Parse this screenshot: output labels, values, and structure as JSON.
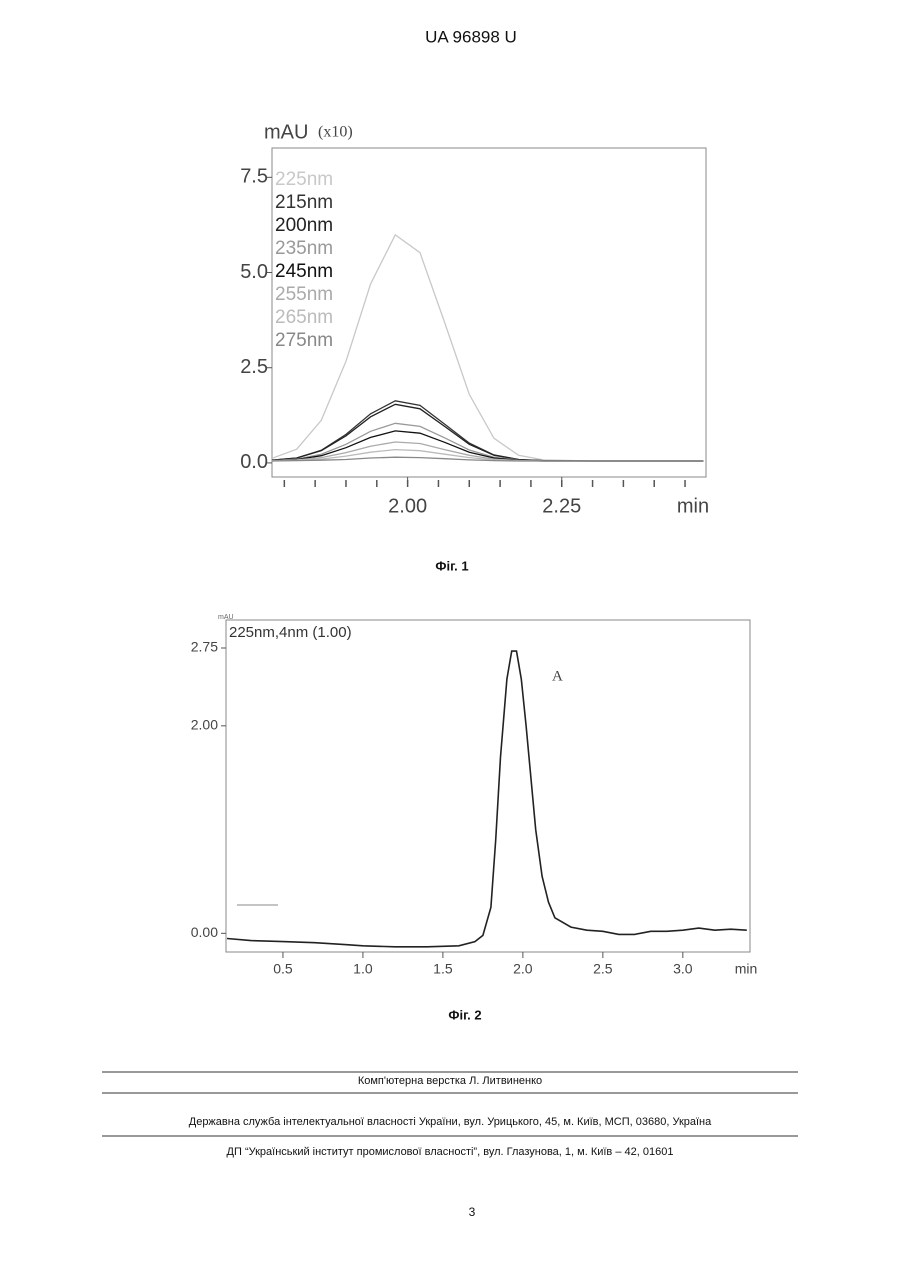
{
  "header": {
    "title": "UA   96898   U"
  },
  "chart_data": [
    {
      "type": "line",
      "ylabel": "mAU",
      "ylabel_scale": "(x10)",
      "xlabel": "min",
      "legend": "upper left",
      "x": [
        1.78,
        1.82,
        1.86,
        1.9,
        1.94,
        1.98,
        2.02,
        2.06,
        2.1,
        2.14,
        2.18,
        2.22,
        2.3,
        2.4,
        2.48
      ],
      "series": [
        {
          "name": "225nm",
          "color": "#c8c8c8",
          "values": [
            0.12,
            0.36,
            1.12,
            2.67,
            4.7,
            5.99,
            5.52,
            3.69,
            1.8,
            0.65,
            0.2,
            0.08,
            0.05,
            0.05,
            0.05
          ]
        },
        {
          "name": "215nm",
          "color": "#333333",
          "values": [
            0.07,
            0.13,
            0.33,
            0.75,
            1.29,
            1.63,
            1.51,
            1.02,
            0.52,
            0.21,
            0.09,
            0.06,
            0.05,
            0.05,
            0.05
          ]
        },
        {
          "name": "200nm",
          "color": "#222222",
          "values": [
            0.07,
            0.13,
            0.32,
            0.71,
            1.21,
            1.54,
            1.42,
            0.96,
            0.49,
            0.2,
            0.09,
            0.06,
            0.05,
            0.05,
            0.05
          ]
        },
        {
          "name": "235nm",
          "color": "#999999",
          "values": [
            0.06,
            0.1,
            0.23,
            0.49,
            0.83,
            1.04,
            0.96,
            0.66,
            0.34,
            0.15,
            0.08,
            0.05,
            0.05,
            0.05,
            0.05
          ]
        },
        {
          "name": "245nm",
          "color": "#111111",
          "values": [
            0.06,
            0.09,
            0.19,
            0.4,
            0.67,
            0.84,
            0.78,
            0.54,
            0.28,
            0.13,
            0.07,
            0.05,
            0.05,
            0.05,
            0.05
          ]
        },
        {
          "name": "255nm",
          "color": "#aaaaaa",
          "values": [
            0.06,
            0.08,
            0.14,
            0.27,
            0.44,
            0.55,
            0.51,
            0.35,
            0.2,
            0.1,
            0.06,
            0.05,
            0.05,
            0.05,
            0.05
          ]
        },
        {
          "name": "265nm",
          "color": "#bbbbbb",
          "values": [
            0.05,
            0.07,
            0.1,
            0.18,
            0.28,
            0.35,
            0.32,
            0.23,
            0.14,
            0.08,
            0.06,
            0.05,
            0.05,
            0.05,
            0.05
          ]
        },
        {
          "name": "275nm",
          "color": "#888888",
          "values": [
            0.05,
            0.06,
            0.07,
            0.09,
            0.13,
            0.15,
            0.14,
            0.11,
            0.08,
            0.06,
            0.05,
            0.05,
            0.05,
            0.05,
            0.05
          ]
        }
      ],
      "xlim": [
        1.78,
        2.484
      ],
      "ylim": [
        -0.37,
        8.27
      ],
      "xticks": [
        {
          "value": 2,
          "label": "2.00"
        },
        2.25
      ],
      "xminorticks": [
        1.8,
        1.85,
        1.9,
        1.95,
        2.0,
        2.05,
        2.1,
        2.15,
        2.2,
        2.25,
        2.3,
        2.35,
        2.4,
        2.45
      ],
      "yticks": [
        {
          "value": 0,
          "label": "0.0"
        },
        2.5,
        {
          "value": 5,
          "label": "5.0"
        },
        7.5
      ]
    },
    {
      "type": "line",
      "ylabel": "mAU",
      "xlabel": "min",
      "legend": "upper left",
      "annotation": "A",
      "x": [
        0.15,
        0.3,
        0.5,
        0.7,
        0.9,
        1.0,
        1.2,
        1.4,
        1.6,
        1.7,
        1.75,
        1.8,
        1.83,
        1.86,
        1.9,
        1.93,
        1.96,
        1.99,
        2.02,
        2.05,
        2.08,
        2.12,
        2.16,
        2.2,
        2.3,
        2.4,
        2.5,
        2.6,
        2.7,
        2.8,
        2.9,
        3.0,
        3.1,
        3.2,
        3.3,
        3.4
      ],
      "series": [
        {
          "name": "225nm,4nm (1.00)",
          "color": "#222222",
          "values": [
            -0.05,
            -0.07,
            -0.08,
            -0.09,
            -0.11,
            -0.12,
            -0.13,
            -0.13,
            -0.12,
            -0.08,
            -0.02,
            0.25,
            0.9,
            1.7,
            2.45,
            2.72,
            2.72,
            2.45,
            2.0,
            1.5,
            1.0,
            0.55,
            0.3,
            0.15,
            0.06,
            0.03,
            0.02,
            -0.01,
            -0.01,
            0.02,
            0.02,
            0.03,
            0.05,
            0.03,
            0.04,
            0.03
          ]
        }
      ],
      "xlim": [
        0.144,
        3.42
      ],
      "ylim": [
        -0.18,
        3.02
      ],
      "xticks": [
        0.5,
        {
          "value": 1,
          "label": "1.0"
        },
        1.5,
        {
          "value": 2,
          "label": "2.0"
        },
        2.5,
        {
          "value": 3,
          "label": "3.0"
        }
      ],
      "yticks": [
        {
          "value": 0,
          "label": "0.00"
        },
        {
          "value": 2,
          "label": "2.00"
        },
        2.75
      ]
    }
  ],
  "captions": [
    "Фіг. 1",
    "Фіг. 2"
  ],
  "footer": {
    "lines": [
      "Комп'ютерна верстка Л. Литвиненко",
      "Державна служба інтелектуальної власності України, вул. Урицького, 45, м. Київ, МСП, 03680, Україна",
      "ДП “Український інститут промислової власності”, вул. Глазунова, 1, м. Київ – 42, 01601"
    ],
    "page_number": "3"
  }
}
